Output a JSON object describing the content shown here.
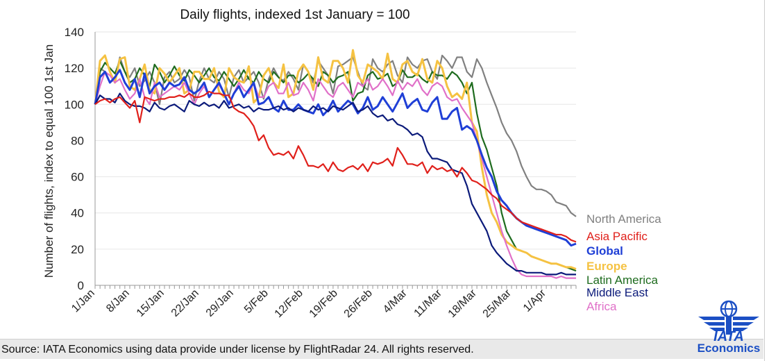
{
  "chart_data": {
    "type": "line",
    "title": "Daily flights, indexed 1st January = 100",
    "ylabel": "Number of flights, index to equal 100 1st Jan",
    "xlabel": "",
    "ylim": [
      0,
      140
    ],
    "yticks": [
      0,
      20,
      40,
      60,
      80,
      100,
      120,
      140
    ],
    "x_tick_labels": [
      "1/Jan",
      "8/Jan",
      "15/Jan",
      "22/Jan",
      "29/Jan",
      "5/Feb",
      "12/Feb",
      "19/Feb",
      "26/Feb",
      "4/Mar",
      "11/Mar",
      "18/Mar",
      "25/Mar",
      "1/Apr"
    ],
    "grid": "horizontal",
    "legend_placement": "right, at line ends",
    "x": [
      "1/Jan",
      "2/Jan",
      "3/Jan",
      "4/Jan",
      "5/Jan",
      "6/Jan",
      "7/Jan",
      "8/Jan",
      "9/Jan",
      "10/Jan",
      "11/Jan",
      "12/Jan",
      "13/Jan",
      "14/Jan",
      "15/Jan",
      "16/Jan",
      "17/Jan",
      "18/Jan",
      "19/Jan",
      "20/Jan",
      "21/Jan",
      "22/Jan",
      "23/Jan",
      "24/Jan",
      "25/Jan",
      "26/Jan",
      "27/Jan",
      "28/Jan",
      "29/Jan",
      "30/Jan",
      "31/Jan",
      "1/Feb",
      "2/Feb",
      "3/Feb",
      "4/Feb",
      "5/Feb",
      "6/Feb",
      "7/Feb",
      "8/Feb",
      "9/Feb",
      "10/Feb",
      "11/Feb",
      "12/Feb",
      "13/Feb",
      "14/Feb",
      "15/Feb",
      "16/Feb",
      "17/Feb",
      "18/Feb",
      "19/Feb",
      "20/Feb",
      "21/Feb",
      "22/Feb",
      "23/Feb",
      "24/Feb",
      "25/Feb",
      "26/Feb",
      "27/Feb",
      "28/Feb",
      "29/Feb",
      "1/Mar",
      "2/Mar",
      "3/Mar",
      "4/Mar",
      "5/Mar",
      "6/Mar",
      "7/Mar",
      "8/Mar",
      "9/Mar",
      "10/Mar",
      "11/Mar",
      "12/Mar",
      "13/Mar",
      "14/Mar",
      "15/Mar",
      "16/Mar",
      "17/Mar",
      "18/Mar",
      "19/Mar",
      "20/Mar",
      "21/Mar",
      "22/Mar",
      "23/Mar",
      "24/Mar",
      "25/Mar",
      "26/Mar",
      "27/Mar",
      "28/Mar",
      "29/Mar",
      "30/Mar",
      "31/Mar",
      "1/Apr",
      "2/Apr",
      "3/Apr",
      "4/Apr",
      "5/Apr",
      "6/Apr",
      "7/Apr"
    ],
    "series": [
      {
        "name": "North America",
        "color": "#808080",
        "bold": false,
        "values": [
          100,
          120,
          118,
          112,
          114,
          126,
          118,
          115,
          120,
          110,
          113,
          118,
          112,
          100,
          115,
          118,
          112,
          114,
          119,
          115,
          102,
          113,
          120,
          114,
          112,
          118,
          114,
          104,
          115,
          119,
          112,
          115,
          118,
          112,
          103,
          114,
          120,
          115,
          113,
          118,
          114,
          108,
          122,
          118,
          112,
          124,
          120,
          116,
          106,
          121,
          122,
          124,
          126,
          118,
          110,
          108,
          125,
          120,
          118,
          122,
          124,
          116,
          112,
          126,
          122,
          120,
          124,
          125,
          118,
          114,
          127,
          124,
          120,
          126,
          126,
          118,
          115,
          125,
          120,
          112,
          105,
          98,
          90,
          84,
          80,
          74,
          66,
          60,
          55,
          53,
          53,
          52,
          50,
          46,
          45,
          44,
          40,
          38
        ]
      },
      {
        "name": "Asia Pacific",
        "color": "#e0201b",
        "bold": false,
        "values": [
          100,
          102,
          103,
          101,
          103,
          104,
          101,
          98,
          102,
          90,
          104,
          103,
          102,
          103,
          103,
          104,
          104,
          105,
          104,
          106,
          104,
          104,
          105,
          107,
          106,
          106,
          105,
          105,
          98,
          96,
          95,
          92,
          88,
          80,
          83,
          76,
          72,
          73,
          72,
          74,
          70,
          77,
          72,
          66,
          66,
          65,
          67,
          63,
          68,
          64,
          63,
          65,
          66,
          64,
          67,
          63,
          68,
          67,
          68,
          70,
          66,
          76,
          72,
          67,
          67,
          66,
          68,
          62,
          66,
          64,
          65,
          63,
          64,
          60,
          65,
          62,
          58,
          57,
          55,
          53,
          50,
          48,
          44,
          42,
          40,
          37,
          35,
          34,
          33,
          32,
          31,
          30,
          29,
          28,
          28,
          27,
          25,
          24
        ]
      },
      {
        "name": "Global",
        "color": "#1f3fd6",
        "bold": true,
        "values": [
          100,
          115,
          118,
          112,
          115,
          119,
          112,
          108,
          114,
          104,
          117,
          106,
          110,
          112,
          108,
          112,
          110,
          111,
          115,
          108,
          106,
          108,
          112,
          104,
          108,
          112,
          106,
          100,
          106,
          110,
          104,
          108,
          112,
          100,
          101,
          104,
          98,
          96,
          102,
          97,
          97,
          100,
          97,
          96,
          95,
          100,
          94,
          97,
          102,
          96,
          99,
          102,
          100,
          95,
          98,
          104,
          97,
          99,
          104,
          100,
          96,
          101,
          106,
          98,
          101,
          103,
          97,
          96,
          101,
          104,
          92,
          92,
          96,
          98,
          86,
          88,
          86,
          80,
          72,
          65,
          60,
          52,
          47,
          44,
          40,
          37,
          35,
          33,
          32,
          31,
          30,
          29,
          28,
          27,
          26,
          25,
          22,
          23
        ]
      },
      {
        "name": "Europe",
        "color": "#f5c242",
        "bold": true,
        "values": [
          100,
          124,
          127,
          118,
          112,
          125,
          126,
          110,
          108,
          114,
          122,
          108,
          106,
          120,
          117,
          112,
          116,
          120,
          106,
          108,
          118,
          118,
          114,
          114,
          120,
          107,
          104,
          120,
          115,
          113,
          112,
          121,
          101,
          104,
          116,
          120,
          112,
          109,
          122,
          104,
          106,
          118,
          122,
          118,
          108,
          126,
          114,
          112,
          124,
          124,
          120,
          112,
          130,
          116,
          112,
          122,
          120,
          118,
          114,
          128,
          114,
          112,
          122,
          124,
          118,
          116,
          125,
          114,
          112,
          124,
          120,
          110,
          104,
          106,
          103,
          112,
          90,
          85,
          65,
          50,
          40,
          35,
          28,
          24,
          22,
          20,
          19,
          18,
          16,
          15,
          14,
          13,
          12,
          12,
          11,
          10,
          10,
          9
        ]
      },
      {
        "name": "Latin America",
        "color": "#1e6b1e",
        "bold": false,
        "values": [
          100,
          118,
          123,
          120,
          117,
          124,
          118,
          112,
          114,
          120,
          116,
          110,
          122,
          118,
          112,
          116,
          121,
          116,
          113,
          119,
          116,
          112,
          116,
          120,
          115,
          113,
          118,
          114,
          110,
          114,
          119,
          114,
          112,
          118,
          114,
          112,
          118,
          115,
          112,
          116,
          116,
          112,
          114,
          117,
          114,
          110,
          118,
          116,
          112,
          115,
          116,
          118,
          102,
          106,
          107,
          116,
          118,
          114,
          115,
          117,
          110,
          112,
          119,
          115,
          115,
          117,
          114,
          112,
          118,
          116,
          116,
          114,
          118,
          116,
          112,
          106,
          112,
          95,
          82,
          75,
          65,
          55,
          40,
          30,
          25,
          20,
          19,
          18,
          16,
          15,
          14,
          13,
          12,
          12,
          11,
          10,
          9,
          8
        ]
      },
      {
        "name": "Middle East",
        "color": "#0b1a7a",
        "bold": false,
        "values": [
          100,
          105,
          103,
          103,
          101,
          106,
          102,
          100,
          99,
          99,
          98,
          96,
          101,
          98,
          97,
          99,
          100,
          98,
          96,
          102,
          100,
          99,
          101,
          99,
          100,
          98,
          102,
          98,
          99,
          100,
          98,
          99,
          96,
          98,
          97,
          97,
          98,
          99,
          97,
          98,
          96,
          98,
          97,
          96,
          99,
          97,
          98,
          96,
          99,
          98,
          97,
          99,
          101,
          96,
          97,
          99,
          95,
          93,
          94,
          91,
          92,
          89,
          88,
          86,
          83,
          84,
          82,
          74,
          70,
          70,
          69,
          68,
          64,
          63,
          62,
          55,
          45,
          40,
          35,
          30,
          22,
          18,
          15,
          12,
          10,
          8,
          8,
          7,
          7,
          7,
          7,
          6,
          6,
          6,
          7,
          6,
          6,
          6
        ]
      },
      {
        "name": "Africa",
        "color": "#e070c8",
        "bold": false,
        "values": [
          100,
          110,
          118,
          116,
          112,
          114,
          108,
          103,
          106,
          114,
          104,
          100,
          112,
          104,
          106,
          108,
          110,
          108,
          112,
          106,
          100,
          106,
          110,
          104,
          108,
          111,
          106,
          100,
          106,
          112,
          108,
          106,
          112,
          104,
          104,
          110,
          112,
          106,
          106,
          112,
          105,
          106,
          112,
          108,
          102,
          114,
          110,
          106,
          104,
          110,
          112,
          108,
          104,
          112,
          110,
          114,
          108,
          110,
          114,
          110,
          105,
          113,
          108,
          112,
          110,
          114,
          108,
          105,
          110,
          112,
          110,
          104,
          102,
          103,
          98,
          94,
          90,
          80,
          70,
          60,
          50,
          40,
          30,
          22,
          15,
          9,
          6,
          5,
          5,
          5,
          5,
          5,
          5,
          4,
          5,
          4,
          4,
          4
        ]
      }
    ]
  },
  "footer": {
    "source": "Source: IATA Economics using data provide under license by FlightRadar 24. All rights reserved."
  },
  "logo": {
    "text": "IATA",
    "subtitle": "Economics",
    "color": "#1b4fc4"
  }
}
